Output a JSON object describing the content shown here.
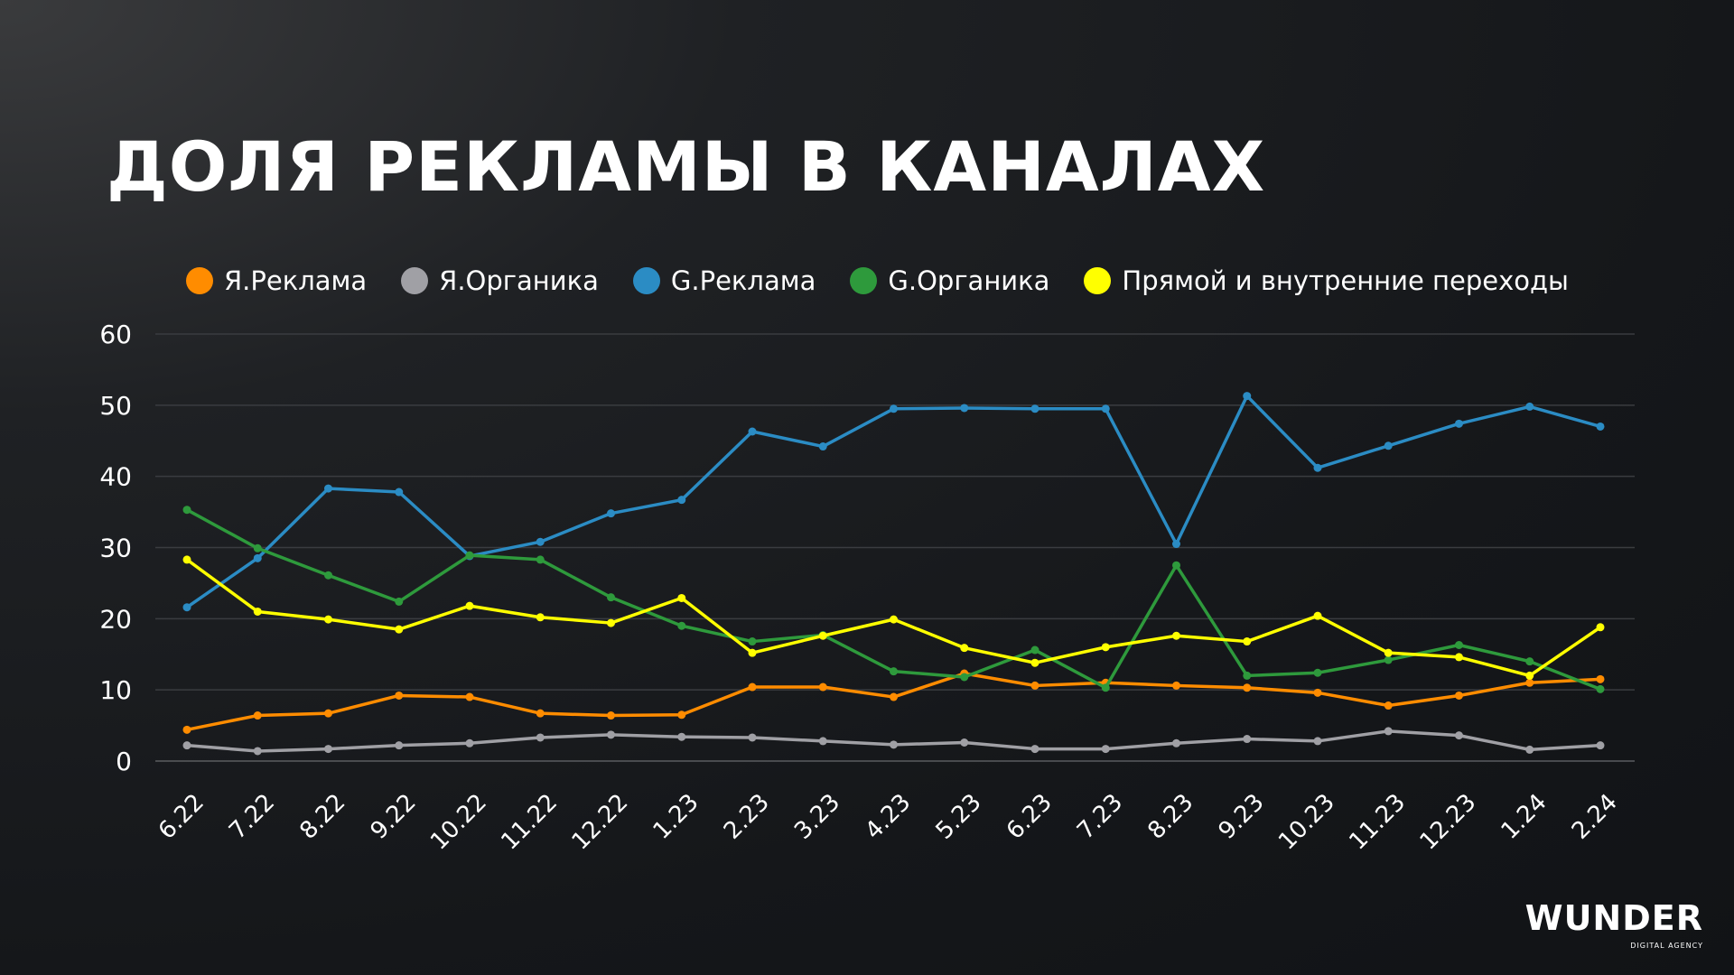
{
  "title": "ДОЛЯ РЕКЛАМЫ В КАНАЛАХ",
  "logo": {
    "name": "WUNDER",
    "subtitle": "DIGITAL AGENCY"
  },
  "chart_data": {
    "type": "line",
    "title": "ДОЛЯ РЕКЛАМЫ В КАНАЛАХ",
    "xlabel": "",
    "ylabel": "",
    "ylim": [
      0,
      60
    ],
    "yticks": [
      "0",
      "10",
      "20",
      "30",
      "40",
      "50",
      "60"
    ],
    "grid": true,
    "legend_position": "top",
    "categories": [
      "6.22",
      "7.22",
      "8.22",
      "9.22",
      "10.22",
      "11.22",
      "12.22",
      "1.23",
      "2.23",
      "3.23",
      "4.23",
      "5.23",
      "6.23",
      "7.23",
      "8.23",
      "9.23",
      "10.23",
      "11.23",
      "12.23",
      "1.24",
      "2.24"
    ],
    "series": [
      {
        "name": "Я.Реклама",
        "color": "#ff8c00",
        "values": [
          4.4,
          6.4,
          6.7,
          9.2,
          9.0,
          6.7,
          6.4,
          6.5,
          10.4,
          10.4,
          9.0,
          12.3,
          10.6,
          11.0,
          10.6,
          10.3,
          9.6,
          7.8,
          9.2,
          11.0,
          11.5
        ]
      },
      {
        "name": "Я.Органика",
        "color": "#a0a0a5",
        "values": [
          2.2,
          1.4,
          1.7,
          2.2,
          2.5,
          3.3,
          3.7,
          3.4,
          3.3,
          2.8,
          2.3,
          2.6,
          1.7,
          1.7,
          2.5,
          3.1,
          2.8,
          4.2,
          3.6,
          1.6,
          2.2
        ]
      },
      {
        "name": "G.Реклама",
        "color": "#2b8cc4",
        "values": [
          21.6,
          28.5,
          38.3,
          37.8,
          28.8,
          30.8,
          34.8,
          36.7,
          46.3,
          44.2,
          49.5,
          49.6,
          49.5,
          49.5,
          30.5,
          51.3,
          41.2,
          44.3,
          47.4,
          49.8,
          47.0
        ]
      },
      {
        "name": "G.Органика",
        "color": "#2e9a3c",
        "values": [
          35.3,
          29.9,
          26.1,
          22.4,
          28.9,
          28.3,
          23.0,
          19.0,
          16.8,
          17.7,
          12.6,
          11.8,
          15.6,
          10.3,
          27.5,
          12.0,
          12.4,
          14.2,
          16.3,
          14.0,
          10.1
        ]
      },
      {
        "name": "Прямой и внутренние переходы",
        "color": "#ffff00",
        "values": [
          28.3,
          21.0,
          19.9,
          18.5,
          21.8,
          20.2,
          19.4,
          22.9,
          15.2,
          17.6,
          19.9,
          15.9,
          13.8,
          16.0,
          17.6,
          16.8,
          20.4,
          15.2,
          14.6,
          12.0,
          18.8
        ]
      }
    ]
  }
}
